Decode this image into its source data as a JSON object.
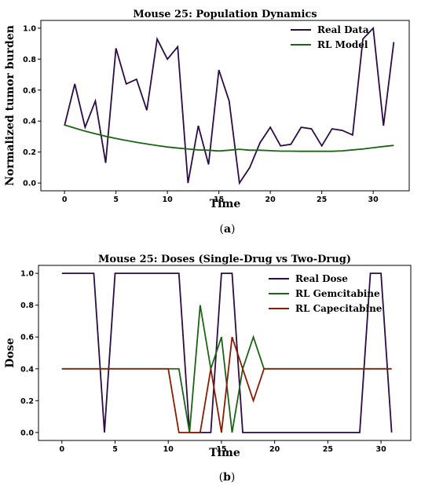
{
  "chart_data": [
    {
      "type": "line",
      "title": "Mouse 25: Population Dynamics",
      "xlabel": "Time",
      "ylabel": "Normalized tumor burden",
      "xlim": [
        -2.3,
        33.5
      ],
      "ylim": [
        -0.05,
        1.05
      ],
      "xticks": [
        0,
        5,
        10,
        15,
        20,
        25,
        30
      ],
      "yticks": [
        0.0,
        0.2,
        0.4,
        0.6,
        0.8,
        1.0
      ],
      "ytick_labels": [
        "0.0",
        "0.2",
        "0.4",
        "0.6",
        "0.8",
        "1.0"
      ],
      "grid": false,
      "legend_position": "top-right",
      "caption_letter": "a",
      "series": [
        {
          "name": "Real Data",
          "color": "#2d0b45",
          "x": [
            0,
            1,
            2,
            3,
            4,
            5,
            6,
            7,
            8,
            9,
            10,
            11,
            12,
            13,
            14,
            15,
            16,
            17,
            18,
            19,
            20,
            21,
            22,
            23,
            24,
            25,
            26,
            27,
            28,
            29,
            30,
            31,
            32
          ],
          "y": [
            0.37,
            0.64,
            0.36,
            0.53,
            0.13,
            0.87,
            0.64,
            0.67,
            0.47,
            0.93,
            0.8,
            0.88,
            0.0,
            0.37,
            0.12,
            0.73,
            0.53,
            0.0,
            0.1,
            0.26,
            0.36,
            0.24,
            0.25,
            0.36,
            0.35,
            0.24,
            0.35,
            0.34,
            0.31,
            0.93,
            1.0,
            0.37,
            0.91
          ]
        },
        {
          "name": "RL Model",
          "color": "#1a6414",
          "x": [
            0,
            1,
            2,
            3,
            4,
            5,
            6,
            7,
            8,
            9,
            10,
            11,
            12,
            13,
            14,
            15,
            16,
            17,
            18,
            19,
            20,
            21,
            22,
            23,
            24,
            25,
            26,
            27,
            28,
            29,
            30,
            31,
            32
          ],
          "y": [
            0.375,
            0.355,
            0.335,
            0.318,
            0.302,
            0.288,
            0.275,
            0.263,
            0.252,
            0.242,
            0.233,
            0.226,
            0.22,
            0.214,
            0.212,
            0.207,
            0.212,
            0.218,
            0.212,
            0.212,
            0.209,
            0.206,
            0.206,
            0.205,
            0.205,
            0.205,
            0.205,
            0.208,
            0.214,
            0.22,
            0.228,
            0.236,
            0.243
          ]
        }
      ]
    },
    {
      "type": "line",
      "title": "Mouse 25: Doses (Single-Drug vs Two-Drug)",
      "xlabel": "Time",
      "ylabel": "Dose",
      "xlim": [
        -2.2,
        32.8
      ],
      "ylim": [
        -0.05,
        1.05
      ],
      "xticks": [
        0,
        5,
        10,
        15,
        20,
        25,
        30
      ],
      "yticks": [
        0.0,
        0.2,
        0.4,
        0.6,
        0.8,
        1.0
      ],
      "ytick_labels": [
        "0.0",
        "0.2",
        "0.4",
        "0.6",
        "0.8",
        "1.0"
      ],
      "grid": false,
      "legend_position": "top-right",
      "caption_letter": "b",
      "series": [
        {
          "name": "Real Dose",
          "color": "#2d0b45",
          "x": [
            0,
            3,
            4,
            5,
            11,
            12,
            13,
            14,
            15,
            16,
            17,
            28,
            29,
            30,
            31
          ],
          "y": [
            1,
            1,
            0,
            1,
            1,
            0,
            0,
            0,
            1,
            1,
            0,
            0,
            1,
            1,
            0
          ]
        },
        {
          "name": "RL Gemcitabine",
          "color": "#1a6414",
          "x": [
            0,
            11,
            12,
            13,
            14,
            15,
            16,
            17,
            18,
            19,
            31
          ],
          "y": [
            0.4,
            0.4,
            0,
            0.8,
            0.4,
            0.6,
            0,
            0.4,
            0.6,
            0.4,
            0.4
          ]
        },
        {
          "name": "RL Capecitabine",
          "color": "#8b1a00",
          "x": [
            0,
            10,
            11,
            12,
            13,
            14,
            15,
            16,
            17,
            18,
            19,
            31
          ],
          "y": [
            0.4,
            0.4,
            0,
            0,
            0,
            0.4,
            0,
            0.6,
            0.4,
            0.2,
            0.4,
            0.4
          ]
        }
      ]
    }
  ]
}
